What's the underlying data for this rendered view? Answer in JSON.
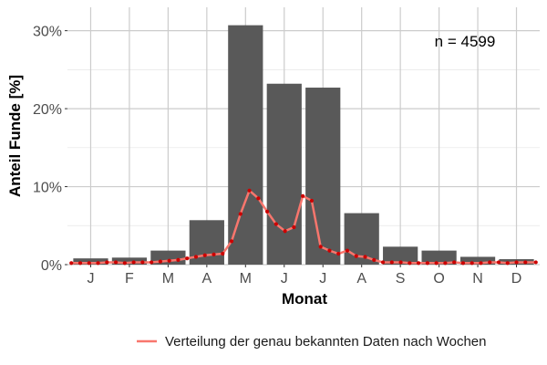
{
  "chart_data": {
    "type": "bar",
    "categories": [
      "J",
      "F",
      "M",
      "A",
      "M",
      "J",
      "J",
      "A",
      "S",
      "O",
      "N",
      "D"
    ],
    "values": [
      0.8,
      0.9,
      1.8,
      5.7,
      30.7,
      23.2,
      22.7,
      6.6,
      2.3,
      1.8,
      1.0,
      0.7
    ],
    "xlabel": "Monat",
    "ylabel": "Anteil Funde [%]",
    "ylim": [
      0,
      33
    ],
    "yticks": [
      0,
      10,
      20,
      30
    ],
    "ytick_labels": [
      "0%",
      "10%",
      "20%",
      "30%"
    ],
    "grid": true,
    "annotation": "n = 4599",
    "legend_position": "bottom-right",
    "bar_color": "#595959",
    "series": [
      {
        "name": "Verteilung der genau bekannten Daten nach Wochen",
        "type": "line",
        "color": "#f8766d",
        "point_color": "#cc0000",
        "x": [
          0.5,
          0.73,
          0.96,
          1.19,
          1.42,
          1.65,
          1.88,
          2.11,
          2.34,
          2.57,
          2.8,
          3.03,
          3.26,
          3.49,
          3.72,
          3.95,
          4.18,
          4.41,
          4.64,
          4.87,
          5.1,
          5.33,
          5.56,
          5.79,
          6.02,
          6.25,
          6.48,
          6.71,
          6.94,
          7.17,
          7.4,
          7.63,
          7.86,
          8.09,
          8.32,
          8.55,
          8.78,
          9.01,
          9.24,
          9.47,
          9.7,
          9.93,
          10.16,
          10.39,
          10.62,
          10.85,
          11.08,
          11.31,
          11.54,
          11.77,
          12.0,
          12.23,
          12.5
        ],
        "y": [
          0.2,
          0.2,
          0.2,
          0.2,
          0.3,
          0.3,
          0.2,
          0.3,
          0.3,
          0.3,
          0.4,
          0.5,
          0.6,
          0.8,
          1.0,
          1.2,
          1.3,
          1.4,
          3.0,
          6.5,
          9.5,
          8.5,
          6.8,
          5.2,
          4.3,
          4.8,
          8.8,
          8.2,
          2.3,
          1.8,
          1.4,
          1.8,
          1.1,
          1.0,
          0.6,
          0.3,
          0.3,
          0.3,
          0.2,
          0.2,
          0.2,
          0.2,
          0.2,
          0.3,
          0.2,
          0.2,
          0.2,
          0.3,
          0.3,
          0.2,
          0.3,
          0.3,
          0.3
        ]
      }
    ]
  }
}
